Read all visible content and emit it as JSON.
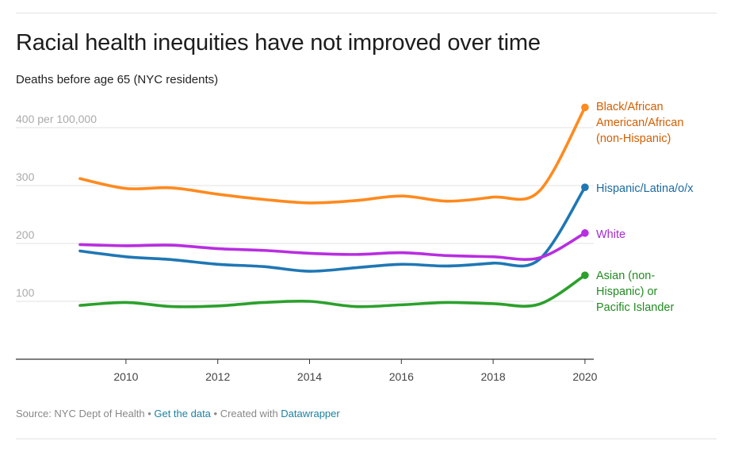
{
  "header": {
    "title": "Racial health inequities have not improved over time",
    "subtitle": "Deaths before age 65 (NYC residents)"
  },
  "footer": {
    "source": "Source: NYC Dept of Health",
    "sep1": " • ",
    "get_data": "Get the data",
    "sep2": " • Created with ",
    "created_with": "Datawrapper"
  },
  "chart_data": {
    "type": "line",
    "title": "Racial health inequities have not improved over time",
    "subtitle": "Deaths before age 65 (NYC residents)",
    "xlabel": "",
    "ylabel": "",
    "xlim": [
      2007.8,
      2020.2
    ],
    "ylim": [
      0,
      440
    ],
    "x_ticks": [
      2010,
      2012,
      2014,
      2016,
      2018,
      2020
    ],
    "y_ticks": [
      {
        "value": 100,
        "label": "100"
      },
      {
        "value": 200,
        "label": "200"
      },
      {
        "value": 300,
        "label": "300"
      },
      {
        "value": 400,
        "label": "400 per 100,000"
      }
    ],
    "grid": "horizontal",
    "x": [
      2009,
      2010,
      2011,
      2012,
      2013,
      2014,
      2015,
      2016,
      2017,
      2018,
      2019,
      2020
    ],
    "series": [
      {
        "name": "Black/African American/African (non-Hispanic)",
        "label_lines": [
          "Black/African",
          "American/African",
          "(non-Hispanic)"
        ],
        "color": "#ff8a1e",
        "label_color": "#d45e00",
        "values": [
          312,
          295,
          296,
          285,
          276,
          270,
          274,
          282,
          273,
          280,
          290,
          435
        ]
      },
      {
        "name": "Hispanic/Latina/o/x",
        "label_lines": [
          "Hispanic/Latina/o/x"
        ],
        "color": "#1f77b4",
        "label_color": "#1c6aa0",
        "values": [
          187,
          177,
          172,
          164,
          160,
          152,
          158,
          164,
          161,
          166,
          172,
          297
        ]
      },
      {
        "name": "White",
        "label_lines": [
          "White"
        ],
        "color": "#b82ee0",
        "label_color": "#a72bd0",
        "values": [
          198,
          196,
          197,
          191,
          188,
          183,
          181,
          184,
          179,
          177,
          175,
          218
        ]
      },
      {
        "name": "Asian (non-Hispanic) or Pacific Islander",
        "label_lines": [
          "Asian (non-",
          "Hispanic) or",
          "Pacific Islander"
        ],
        "color": "#2ca02c",
        "label_color": "#228b22",
        "values": [
          93,
          98,
          91,
          92,
          98,
          100,
          91,
          94,
          98,
          96,
          95,
          145
        ]
      }
    ],
    "legend": "direct labels at right end of lines"
  }
}
